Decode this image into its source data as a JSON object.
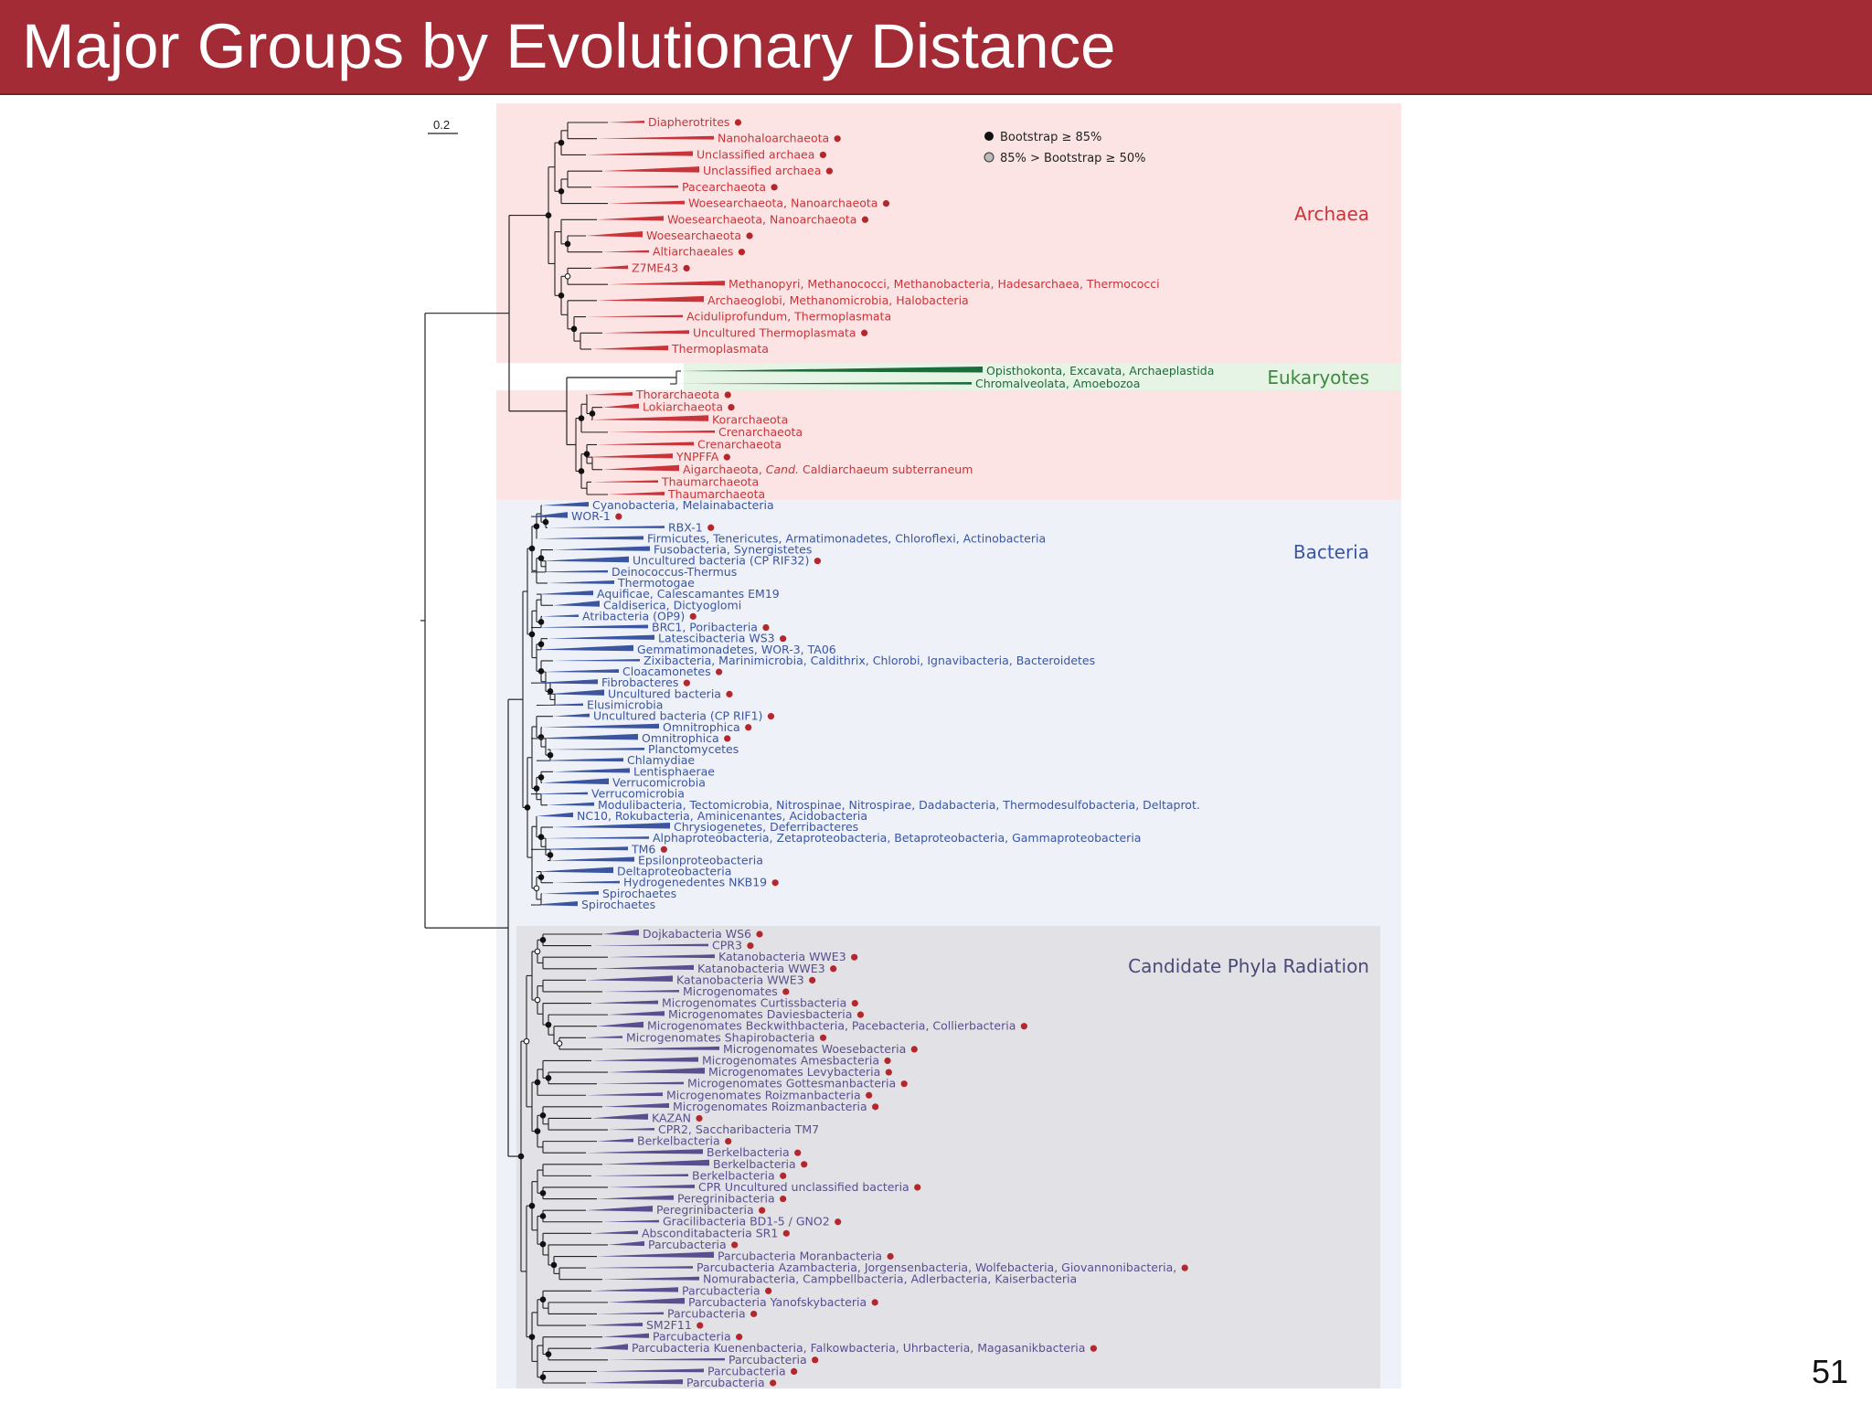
{
  "slide": {
    "title": "Major Groups by Evolutionary Distance",
    "number": "51"
  },
  "colors": {
    "header": "#a22b35",
    "archaea": "#c8343a",
    "eukaryotes": "#1e6a3a",
    "bacteria": "#3b55a0",
    "cpr": "#5a4f8e",
    "archaea_bg": "#fbe4e3",
    "eukaryotes_bg": "#e6f4e6",
    "bacteria_bg": "#eef1f7",
    "cpr_bg": "#e1e1e6"
  },
  "figure": {
    "scale_bar": "0.2",
    "legend": [
      "Bootstrap ≥ 85%",
      "85% > Bootstrap ≥ 50%"
    ],
    "domains": [
      "Archaea",
      "Eukaryotes",
      "Bacteria",
      "Candidate Phyla Radiation"
    ]
  },
  "taxa": [
    {
      "g": "a",
      "t": "Diapherotrites",
      "d": 1
    },
    {
      "g": "a",
      "t": "Nanohaloarchaeota",
      "d": 1
    },
    {
      "g": "a",
      "t": "Unclassified archaea",
      "d": 1
    },
    {
      "g": "a",
      "t": "Unclassified archaea",
      "d": 1
    },
    {
      "g": "a",
      "t": "Pacearchaeota",
      "d": 1
    },
    {
      "g": "a",
      "t": "Woesearchaeota, Nanoarchaeota",
      "d": 1
    },
    {
      "g": "a",
      "t": "Woesearchaeota, Nanoarchaeota",
      "d": 1
    },
    {
      "g": "a",
      "t": "Woesearchaeota",
      "d": 1
    },
    {
      "g": "a",
      "t": "Altiarchaeales",
      "d": 1
    },
    {
      "g": "a",
      "t": "Z7ME43",
      "d": 1
    },
    {
      "g": "a",
      "t": "Methanopyri, Methanococci, Methanobacteria, Hadesarchaea, Thermococci",
      "d": 0
    },
    {
      "g": "a",
      "t": "Archaeoglobi, Methanomicrobia, Halobacteria",
      "d": 0
    },
    {
      "g": "a",
      "t": "Aciduliprofundum, Thermoplasmata",
      "d": 0
    },
    {
      "g": "a",
      "t": "Uncultured Thermoplasmata",
      "d": 1
    },
    {
      "g": "a",
      "t": "Thermoplasmata",
      "d": 0
    },
    {
      "g": "e",
      "t": "Opisthokonta, Excavata, Archaeplastida",
      "d": 0
    },
    {
      "g": "e",
      "t": "Chromalveolata, Amoebozoa",
      "d": 0
    },
    {
      "g": "a",
      "t": "Thorarchaeota",
      "d": 1
    },
    {
      "g": "a",
      "t": "Lokiarchaeota",
      "d": 1
    },
    {
      "g": "a",
      "t": "Korarchaeota",
      "d": 0
    },
    {
      "g": "a",
      "t": "Crenarchaeota",
      "d": 0
    },
    {
      "g": "a",
      "t": "Crenarchaeota",
      "d": 0
    },
    {
      "g": "a",
      "t": "YNPFFA",
      "d": 1
    },
    {
      "g": "a",
      "t": "Aigarchaeota,",
      "i": "Cand.",
      "r": "Caldiarchaeum subterraneum",
      "d": 0
    },
    {
      "g": "a",
      "t": "Thaumarchaeota",
      "d": 0
    },
    {
      "g": "a",
      "t": "Thaumarchaeota",
      "d": 0
    },
    {
      "g": "b",
      "t": "Cyanobacteria, Melainabacteria",
      "d": 0
    },
    {
      "g": "b",
      "t": "WOR-1",
      "d": 1
    },
    {
      "g": "b",
      "t": "RBX-1",
      "d": 1
    },
    {
      "g": "b",
      "t": "Firmicutes, Tenericutes, Armatimonadetes, Chloroflexi, Actinobacteria",
      "d": 0
    },
    {
      "g": "b",
      "t": "Fusobacteria, Synergistetes",
      "d": 0
    },
    {
      "g": "b",
      "t": "Uncultured bacteria (CP RIF32)",
      "d": 1
    },
    {
      "g": "b",
      "t": "Deinococcus-Thermus",
      "d": 0
    },
    {
      "g": "b",
      "t": "Thermotogae",
      "d": 0
    },
    {
      "g": "b",
      "t": "Aquificae, Calescamantes EM19",
      "d": 0
    },
    {
      "g": "b",
      "t": "Caldiserica, Dictyoglomi",
      "d": 0
    },
    {
      "g": "b",
      "t": "Atribacteria (OP9)",
      "d": 1
    },
    {
      "g": "b",
      "t": "BRC1, Poribacteria",
      "d": 1
    },
    {
      "g": "b",
      "t": "Latescibacteria WS3",
      "d": 1
    },
    {
      "g": "b",
      "t": "Gemmatimonadetes, WOR-3, TA06",
      "d": 0
    },
    {
      "g": "b",
      "t": "Zixibacteria, Marinimicrobia, Caldithrix, Chlorobi, Ignavibacteria, Bacteroidetes",
      "d": 0
    },
    {
      "g": "b",
      "t": "Cloacamonetes",
      "d": 1
    },
    {
      "g": "b",
      "t": "Fibrobacteres",
      "d": 1
    },
    {
      "g": "b",
      "t": "Uncultured bacteria",
      "d": 1
    },
    {
      "g": "b",
      "t": "Elusimicrobia",
      "d": 0
    },
    {
      "g": "b",
      "t": "Uncultured bacteria (CP RIF1)",
      "d": 1
    },
    {
      "g": "b",
      "t": "Omnitrophica",
      "d": 1
    },
    {
      "g": "b",
      "t": "Omnitrophica",
      "d": 1
    },
    {
      "g": "b",
      "t": "Planctomycetes",
      "d": 0
    },
    {
      "g": "b",
      "t": "Chlamydiae",
      "d": 0
    },
    {
      "g": "b",
      "t": "Lentisphaerae",
      "d": 0
    },
    {
      "g": "b",
      "t": "Verrucomicrobia",
      "d": 0
    },
    {
      "g": "b",
      "t": "Verrucomicrobia",
      "d": 0
    },
    {
      "g": "b",
      "t": "Modulibacteria, Tectomicrobia, Nitrospinae, Nitrospirae, Dadabacteria, Thermodesulfobacteria, Deltaprot.",
      "d": 0
    },
    {
      "g": "b",
      "t": "NC10, Rokubacteria, Aminicenantes, Acidobacteria",
      "d": 0
    },
    {
      "g": "b",
      "t": "Chrysiogenetes, Deferribacteres",
      "d": 0
    },
    {
      "g": "b",
      "t": "Alphaproteobacteria, Zetaproteobacteria, Betaproteobacteria, Gammaproteobacteria",
      "d": 0
    },
    {
      "g": "b",
      "t": "TM6",
      "d": 1
    },
    {
      "g": "b",
      "t": "Epsilonproteobacteria",
      "d": 0
    },
    {
      "g": "b",
      "t": "Deltaproteobacteria",
      "d": 0
    },
    {
      "g": "b",
      "t": "Hydrogenedentes NKB19",
      "d": 1
    },
    {
      "g": "b",
      "t": "Spirochaetes",
      "d": 0
    },
    {
      "g": "b",
      "t": "Spirochaetes",
      "d": 0
    },
    {
      "g": "c",
      "t": "Dojkabacteria WS6",
      "d": 1
    },
    {
      "g": "c",
      "t": "CPR3",
      "d": 1
    },
    {
      "g": "c",
      "t": "Katanobacteria WWE3",
      "d": 1
    },
    {
      "g": "c",
      "t": "Katanobacteria WWE3",
      "d": 1
    },
    {
      "g": "c",
      "t": "Katanobacteria WWE3",
      "d": 1
    },
    {
      "g": "c",
      "t": "Microgenomates",
      "d": 1
    },
    {
      "g": "c",
      "t": "Microgenomates Curtissbacteria",
      "d": 1
    },
    {
      "g": "c",
      "t": "Microgenomates Daviesbacteria",
      "d": 1
    },
    {
      "g": "c",
      "t": "Microgenomates Beckwithbacteria, Pacebacteria, Collierbacteria",
      "d": 1
    },
    {
      "g": "c",
      "t": "Microgenomates Shapirobacteria",
      "d": 1
    },
    {
      "g": "c",
      "t": "Microgenomates Woesebacteria",
      "d": 1
    },
    {
      "g": "c",
      "t": "Microgenomates Amesbacteria",
      "d": 1
    },
    {
      "g": "c",
      "t": "Microgenomates Levybacteria",
      "d": 1
    },
    {
      "g": "c",
      "t": "Microgenomates Gottesmanbacteria",
      "d": 1
    },
    {
      "g": "c",
      "t": "Microgenomates Roizmanbacteria",
      "d": 1
    },
    {
      "g": "c",
      "t": "Microgenomates Roizmanbacteria",
      "d": 1
    },
    {
      "g": "c",
      "t": "KAZAN",
      "d": 1
    },
    {
      "g": "c",
      "t": "CPR2, Saccharibacteria TM7",
      "d": 0
    },
    {
      "g": "c",
      "t": "Berkelbacteria",
      "d": 1
    },
    {
      "g": "c",
      "t": "Berkelbacteria",
      "d": 1
    },
    {
      "g": "c",
      "t": "Berkelbacteria",
      "d": 1
    },
    {
      "g": "c",
      "t": "Berkelbacteria",
      "d": 1
    },
    {
      "g": "c",
      "t": "CPR Uncultured unclassified bacteria",
      "d": 1
    },
    {
      "g": "c",
      "t": "Peregrinibacteria",
      "d": 1
    },
    {
      "g": "c",
      "t": "Peregrinibacteria",
      "d": 1
    },
    {
      "g": "c",
      "t": "Gracilibacteria BD1-5 / GNO2",
      "d": 1
    },
    {
      "g": "c",
      "t": "Absconditabacteria SR1",
      "d": 1
    },
    {
      "g": "c",
      "t": "Parcubacteria",
      "d": 1
    },
    {
      "g": "c",
      "t": "Parcubacteria Moranbacteria",
      "d": 1
    },
    {
      "g": "c",
      "t": "Parcubacteria Azambacteria, Jorgensenbacteria, Wolfebacteria, Giovannonibacteria,",
      "d": 1
    },
    {
      "g": "c",
      "t": "Nomurabacteria, Campbellbacteria, Adlerbacteria, Kaiserbacteria",
      "d": 0
    },
    {
      "g": "c",
      "t": "Parcubacteria",
      "d": 1
    },
    {
      "g": "c",
      "t": "Parcubacteria Yanofskybacteria",
      "d": 1
    },
    {
      "g": "c",
      "t": "Parcubacteria",
      "d": 1
    },
    {
      "g": "c",
      "t": "SM2F11",
      "d": 1
    },
    {
      "g": "c",
      "t": "Parcubacteria",
      "d": 1
    },
    {
      "g": "c",
      "t": "Parcubacteria Kuenenbacteria, Falkowbacteria, Uhrbacteria, Magasanikbacteria",
      "d": 1
    },
    {
      "g": "c",
      "t": "Parcubacteria",
      "d": 1
    },
    {
      "g": "c",
      "t": "Parcubacteria",
      "d": 1
    },
    {
      "g": "c",
      "t": "Parcubacteria",
      "d": 1
    }
  ]
}
